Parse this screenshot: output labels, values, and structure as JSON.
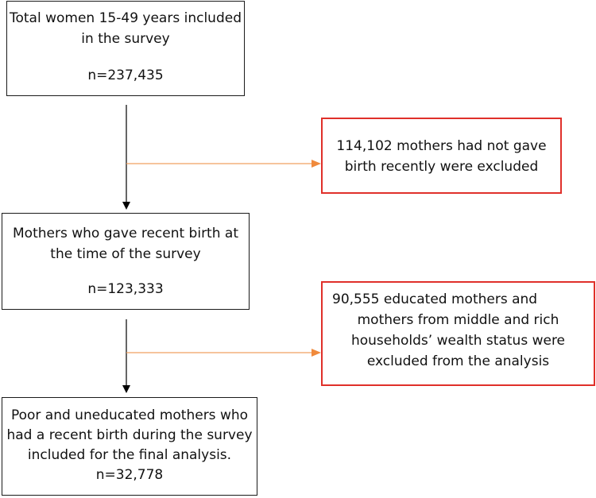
{
  "boxes": {
    "total": {
      "line1": "Total women 15-49 years included",
      "line2": "in the survey",
      "count": "n=237,435"
    },
    "recent_birth": {
      "line1": "Mothers who gave recent birth at",
      "line2": "the time of the survey",
      "count": "n=123,333"
    },
    "final": {
      "line1": "Poor and uneducated mothers who",
      "line2": "had a recent birth during the survey",
      "line3": "included for the final analysis.",
      "count": "n=32,778"
    }
  },
  "exclusions": {
    "first": {
      "line1": "114,102 mothers had not gave",
      "line2": "birth recently were excluded"
    },
    "second": {
      "line1": "90,555 educated mothers and",
      "line2": "mothers from middle and rich",
      "line3": "households’ wealth status were",
      "line4": "excluded from the analysis"
    }
  },
  "colors": {
    "main_border": "#1a1a1a",
    "exclusion_border": "#e0302a",
    "exclusion_arrow": "#f0a060",
    "flow_arrow": "#000000"
  }
}
